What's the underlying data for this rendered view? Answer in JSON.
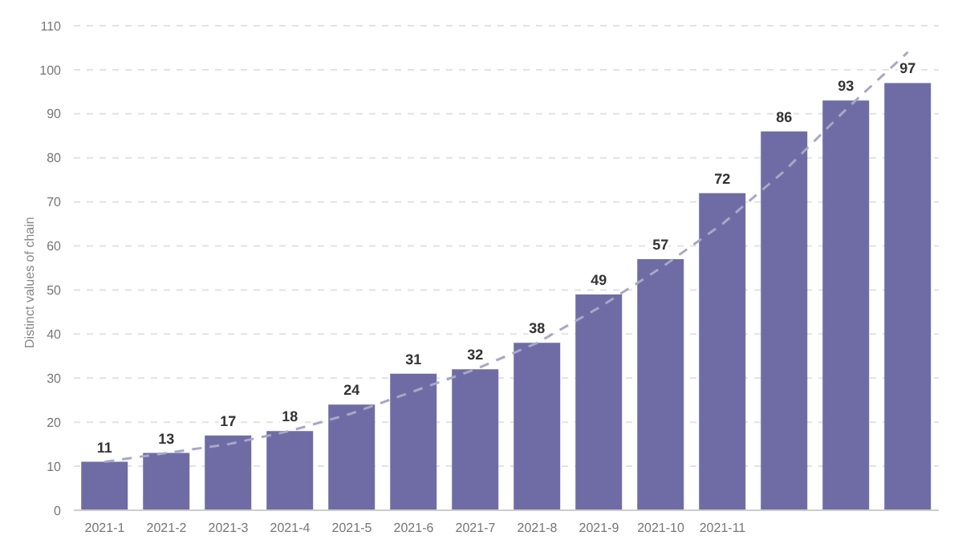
{
  "chart_data": {
    "type": "bar",
    "ylabel": "Distinct values of chain",
    "categories": [
      "2021-1",
      "2021-2",
      "2021-3",
      "2021-4",
      "2021-5",
      "2021-6",
      "2021-7",
      "2021-8",
      "2021-9",
      "2021-10",
      "2021-11",
      null,
      null,
      null
    ],
    "series": [
      {
        "color": "#6f6ca5",
        "values": [
          11,
          13,
          17,
          18,
          24,
          31,
          32,
          38,
          49,
          57,
          72,
          86,
          93,
          97
        ],
        "value_labels": [
          "11",
          "13",
          "17",
          "18",
          "24",
          "31",
          "32",
          "38",
          "49",
          "57",
          "72",
          "86",
          "93",
          "97"
        ]
      },
      {
        "type": "line",
        "color": "#a9a7c6",
        "line_style": "dashed",
        "marker": "none",
        "values": [
          11,
          13,
          15,
          18,
          22,
          27,
          32,
          38,
          46,
          55,
          65,
          77,
          91,
          104
        ]
      }
    ],
    "ylim": [
      0,
      110
    ],
    "yticks": [
      0,
      10,
      20,
      30,
      40,
      50,
      60,
      70,
      80,
      90,
      100,
      110
    ],
    "grid": "y"
  }
}
